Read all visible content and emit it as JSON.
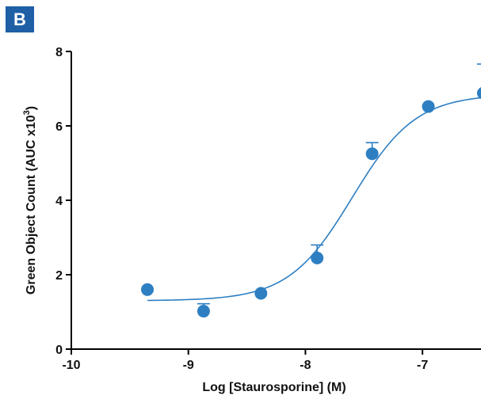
{
  "panel_label": "B",
  "colors": {
    "marker": "#2e7fc2",
    "curve": "#2e7fc2",
    "axis": "#000000",
    "badge": "#1f5fa6"
  },
  "chart_data": {
    "type": "scatter",
    "title": "",
    "xlabel": "Log [Staurosporine] (M)",
    "ylabel_main": "Green Object Count (AUC x10",
    "ylabel_sup": "3",
    "ylabel_end": ")",
    "xlim": [
      -10,
      -6.5
    ],
    "ylim": [
      0,
      8
    ],
    "x_ticks": [
      -10,
      -9,
      -8,
      -7
    ],
    "x_tick_labels": [
      "-10",
      "-9",
      "-8",
      "-7"
    ],
    "y_ticks": [
      0,
      2,
      4,
      6,
      8
    ],
    "y_tick_labels": [
      "0",
      "2",
      "4",
      "6",
      "8"
    ],
    "grid": false,
    "legend": "none",
    "points": [
      {
        "x": -9.35,
        "y": 1.6,
        "err": 0
      },
      {
        "x": -8.87,
        "y": 1.02,
        "err": 0.2
      },
      {
        "x": -8.38,
        "y": 1.5,
        "err": 0
      },
      {
        "x": -7.9,
        "y": 2.45,
        "err": 0.35
      },
      {
        "x": -7.43,
        "y": 5.25,
        "err": 0.3
      },
      {
        "x": -6.95,
        "y": 6.52,
        "err": 0
      },
      {
        "x": -6.48,
        "y": 6.88,
        "err": 0.78
      }
    ],
    "fit": {
      "bottom": 1.3,
      "top": 6.85,
      "log_ec50": -7.6,
      "hill_slope": 1.6,
      "x_start": -9.35,
      "x_end": -6.48
    }
  }
}
